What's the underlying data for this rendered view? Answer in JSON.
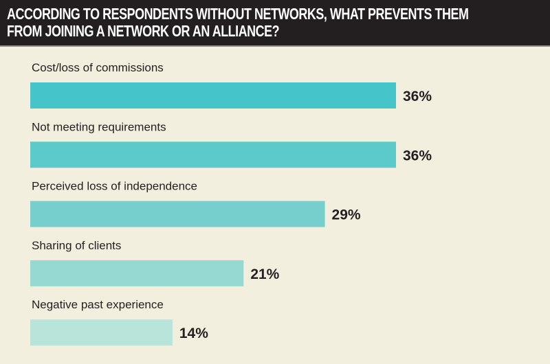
{
  "chart_data": {
    "type": "bar",
    "orientation": "horizontal",
    "title": "ACCORDING TO RESPONDENTS WITHOUT NETWORKS, WHAT PREVENTS THEM FROM JOINING A NETWORK OR AN ALLIANCE?",
    "categories": [
      "Cost/loss of commissions",
      "Not meeting requirements",
      "Perceived loss of independence",
      "Sharing of clients",
      "Negative past experience"
    ],
    "values": [
      36,
      36,
      29,
      21,
      14
    ],
    "value_labels": [
      "36%",
      "36%",
      "29%",
      "21%",
      "14%"
    ],
    "unit": "%",
    "xlim": [
      0,
      36
    ],
    "grid": false,
    "colors": [
      "#45c4c9",
      "#5ccacb",
      "#76cfcc",
      "#96d9d2",
      "#b8e4d9"
    ]
  }
}
